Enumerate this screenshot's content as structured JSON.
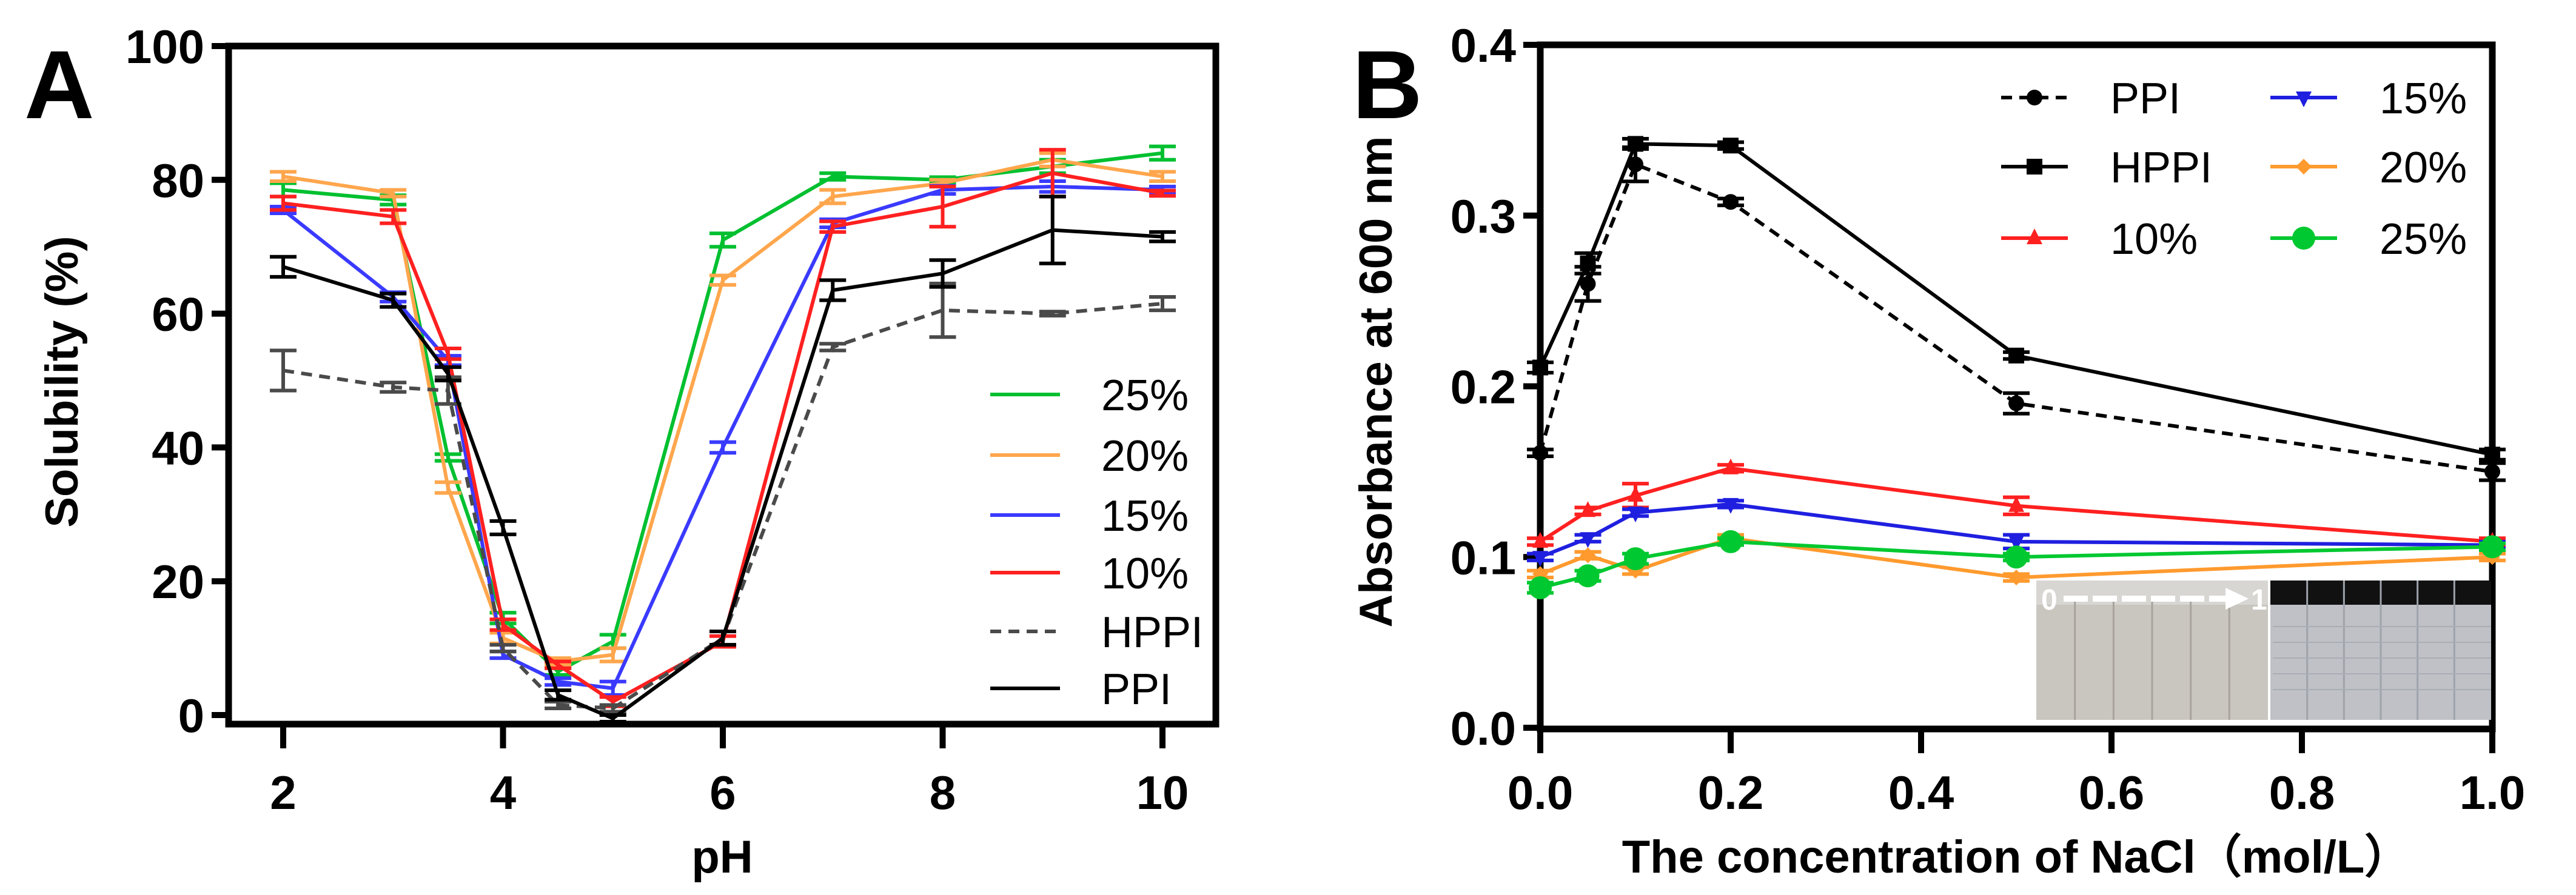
{
  "chart_data": [
    {
      "panel_label": "A",
      "type": "line",
      "title": "",
      "xlabel": "pH",
      "ylabel": "Solubility (%)",
      "xlim": [
        2,
        10
      ],
      "ylim": [
        0,
        100
      ],
      "xticks": [
        "2",
        "4",
        "6",
        "8",
        "10"
      ],
      "yticks": [
        "0",
        "20",
        "40",
        "60",
        "80",
        "100"
      ],
      "grid": false,
      "legend_position": "bottom-right",
      "x": [
        2,
        3,
        3.5,
        4,
        4.5,
        5,
        6,
        7,
        8,
        9,
        10
      ],
      "series": [
        {
          "name": "25%",
          "color": "#00c030",
          "dash": false,
          "values": [
            78.5,
            77,
            38.5,
            14.5,
            6.5,
            11,
            71,
            80.5,
            80,
            82,
            84
          ],
          "err": [
            1,
            0.7,
            0.5,
            0.8,
            0.5,
            1,
            1,
            0.5,
            0.4,
            1,
            1
          ]
        },
        {
          "name": "20%",
          "color": "#ffa64d",
          "dash": false,
          "values": [
            80.5,
            78,
            34,
            11.5,
            8,
            9,
            65,
            77.5,
            79.5,
            83,
            80.5
          ],
          "err": [
            0.7,
            0.5,
            0.8,
            0.8,
            0.5,
            1,
            0.7,
            1,
            0.5,
            1,
            0.7
          ]
        },
        {
          "name": "15%",
          "color": "#3a3aff",
          "dash": false,
          "values": [
            75.5,
            62.5,
            53,
            9,
            5,
            4,
            40,
            73.5,
            78.5,
            79,
            78.5
          ],
          "err": [
            0.5,
            0.7,
            0.7,
            0.5,
            0.5,
            1,
            0.8,
            0.6,
            0.6,
            0.8,
            0.5
          ]
        },
        {
          "name": "10%",
          "color": "#ff2020",
          "dash": false,
          "values": [
            76.5,
            74.5,
            54,
            13.5,
            7.5,
            2,
            11,
            73,
            76,
            81,
            78
          ],
          "err": [
            1,
            1,
            0.8,
            0.8,
            0.5,
            0.7,
            0.8,
            0.8,
            3,
            3.5,
            0.4
          ]
        },
        {
          "name": "HPPI",
          "color": "#4a4a4a",
          "dash": true,
          "values": [
            51.5,
            49,
            48.5,
            10,
            1.5,
            1,
            11.5,
            55,
            60.5,
            60,
            61.5
          ],
          "err": [
            3,
            0.7,
            2,
            0.5,
            0.5,
            0.5,
            1,
            0.5,
            4,
            0.3,
            1
          ]
        },
        {
          "name": "PPI",
          "color": "#000000",
          "dash": false,
          "values": [
            67,
            62,
            51,
            28,
            3,
            -0.5,
            11.5,
            63.5,
            66,
            72.5,
            71.5
          ],
          "err": [
            1.5,
            1,
            1,
            1,
            0.7,
            0.5,
            1,
            1.5,
            2,
            5,
            0.7
          ]
        }
      ]
    },
    {
      "panel_label": "B",
      "type": "line",
      "title": "",
      "xlabel": "The concentration of NaCl（mol/L）",
      "ylabel": "Absorbance at 600 nm",
      "xlim": [
        0,
        1.0
      ],
      "ylim": [
        0,
        0.4
      ],
      "xticks": [
        "0.0",
        "0.2",
        "0.4",
        "0.6",
        "0.8",
        "1.0"
      ],
      "yticks": [
        "0.0",
        "0.1",
        "0.2",
        "0.3",
        "0.4"
      ],
      "grid": false,
      "legend_position": "top-right",
      "x": [
        0,
        0.05,
        0.1,
        0.2,
        0.5,
        1.0
      ],
      "series": [
        {
          "name": "PPI",
          "color": "#000000",
          "dash": true,
          "marker": "circle",
          "values": [
            0.161,
            0.26,
            0.33,
            0.308,
            0.19,
            0.15
          ],
          "err": [
            0.002,
            0.01,
            0.01,
            0.002,
            0.006,
            0.005
          ]
        },
        {
          "name": "HPPI",
          "color": "#000000",
          "dash": false,
          "marker": "square",
          "values": [
            0.211,
            0.272,
            0.342,
            0.341,
            0.218,
            0.16
          ],
          "err": [
            0.003,
            0.006,
            0.003,
            0.002,
            0.002,
            0.003
          ]
        },
        {
          "name": "10%",
          "color": "#ff2020",
          "dash": false,
          "marker": "triangle-up",
          "values": [
            0.109,
            0.127,
            0.136,
            0.152,
            0.13,
            0.109
          ],
          "err": [
            0.002,
            0.002,
            0.007,
            0.002,
            0.005,
            0.002
          ]
        },
        {
          "name": "15%",
          "color": "#1f1fe0",
          "dash": false,
          "marker": "triangle-down",
          "values": [
            0.1,
            0.111,
            0.126,
            0.131,
            0.109,
            0.107
          ],
          "err": [
            0.002,
            0.002,
            0.002,
            0.002,
            0.004,
            0.002
          ]
        },
        {
          "name": "20%",
          "color": "#ff9a2e",
          "dash": false,
          "marker": "diamond",
          "values": [
            0.09,
            0.101,
            0.092,
            0.111,
            0.088,
            0.1
          ],
          "err": [
            0.002,
            0.002,
            0.002,
            0.002,
            0.002,
            0.002
          ]
        },
        {
          "name": "25%",
          "color": "#00c830",
          "dash": false,
          "marker": "circle-large",
          "values": [
            0.082,
            0.089,
            0.099,
            0.109,
            0.1,
            0.106
          ],
          "err": [
            0.003,
            0.003,
            0.003,
            0.002,
            0.002,
            0.002
          ]
        }
      ],
      "inset": {
        "label_start": "0",
        "label_end": "1",
        "vials_left": 6,
        "vials_right": 6
      }
    }
  ]
}
